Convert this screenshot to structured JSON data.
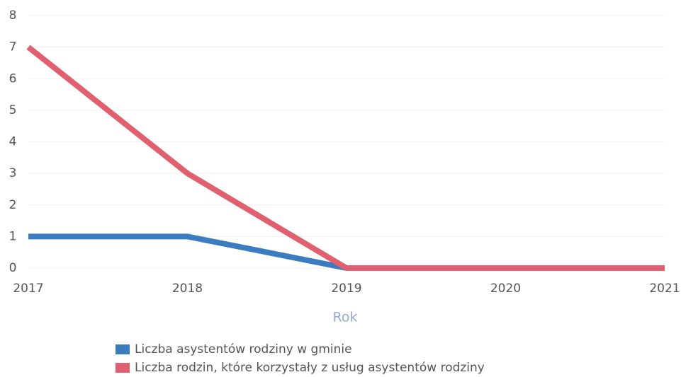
{
  "chart_data": {
    "type": "line",
    "x_label": "Rok",
    "x": [
      2017,
      2018,
      2019,
      2020,
      2021
    ],
    "xlim": [
      2017,
      2021
    ],
    "xticks": [
      2017,
      2018,
      2019,
      2020,
      2021
    ],
    "ylim": [
      0,
      8
    ],
    "yticks": [
      0,
      1,
      2,
      3,
      4,
      5,
      6,
      7,
      8
    ],
    "grid": true,
    "series": [
      {
        "name": "Liczba asystentów rodziny w gminie",
        "color": "#3b7cc0",
        "values": [
          1,
          1,
          0,
          0,
          0
        ]
      },
      {
        "name": "Liczba rodzin, które korzystały z usług asystentów rodziny",
        "color": "#e1606f",
        "values": [
          7,
          3,
          0,
          0,
          0
        ]
      }
    ]
  }
}
